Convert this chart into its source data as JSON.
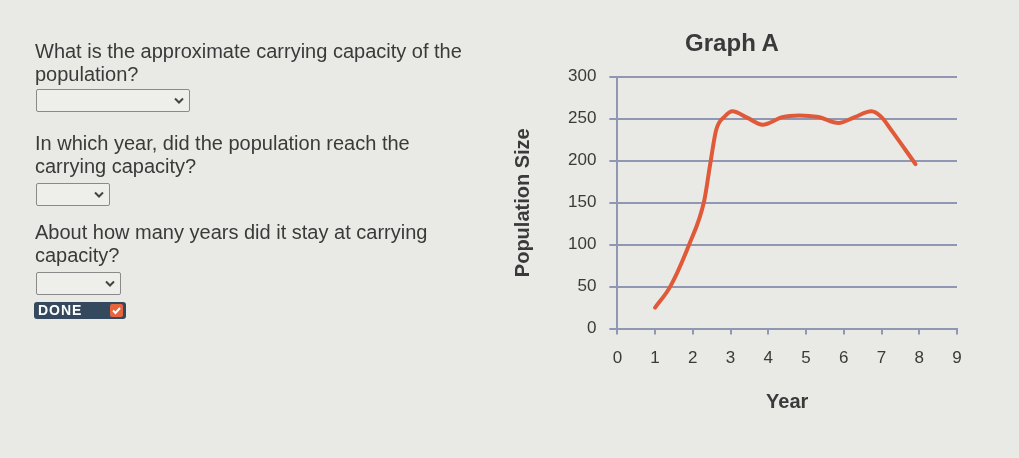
{
  "chart_data": {
    "type": "line",
    "title": "Graph A",
    "xlabel": "Year",
    "ylabel": "Population Size",
    "annotations": [
      "What is the approximate carrying capacity of the population?",
      "In which year, did the population reach the carrying capacity?",
      "About how many years did it stay at carrying capacity?",
      "DONE"
    ],
    "x": [
      1,
      1.4,
      1.9,
      2.3,
      2.46,
      2.62,
      2.85,
      3.05,
      3.45,
      3.85,
      4.37,
      4.82,
      5.33,
      5.86,
      6.29,
      6.73,
      7.0,
      7.25,
      7.9
    ],
    "series": [
      {
        "color": "#e05a3a",
        "values": [
          25,
          50,
          100,
          152,
          196,
          237,
          253,
          259,
          251,
          243,
          252,
          254,
          252,
          245,
          252,
          259,
          252,
          237,
          196
        ]
      }
    ],
    "xlim": [
      0,
      9
    ],
    "ylim": [
      0,
      300
    ],
    "xticks": [
      0,
      1,
      2,
      3,
      4,
      5,
      6,
      7,
      8,
      9
    ],
    "yticks": [
      0,
      50,
      100,
      150,
      200,
      250,
      300
    ],
    "grid": "y",
    "legend": false,
    "marker": "none"
  }
}
